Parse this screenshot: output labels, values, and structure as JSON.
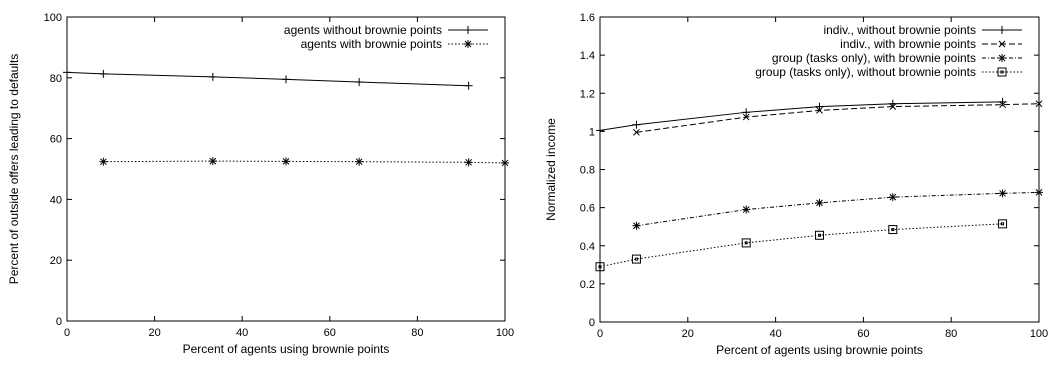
{
  "chart_data": [
    {
      "type": "line",
      "title": "",
      "xlabel": "Percent of agents using brownie points",
      "ylabel": "Percent of outside offers leading to defaults",
      "xlim": [
        0,
        100
      ],
      "ylim": [
        0,
        100
      ],
      "xticks": [
        0,
        20,
        40,
        60,
        80,
        100
      ],
      "yticks": [
        0,
        20,
        40,
        60,
        80,
        100
      ],
      "legend_position": "top-right",
      "series": [
        {
          "name": "agents without brownie points",
          "marker": "plus",
          "dash": "solid",
          "x": [
            0,
            8.3,
            33.3,
            50,
            66.7,
            91.7
          ],
          "y": [
            81.8,
            81.3,
            80.3,
            79.5,
            78.6,
            77.4
          ]
        },
        {
          "name": "agents with brownie points",
          "marker": "star",
          "dash": "dotted",
          "x": [
            8.3,
            33.3,
            50,
            66.7,
            91.7,
            100
          ],
          "y": [
            52.4,
            52.6,
            52.5,
            52.4,
            52.2,
            52.0
          ]
        }
      ]
    },
    {
      "type": "line",
      "title": "",
      "xlabel": "Percent of agents using brownie points",
      "ylabel": "Normalized income",
      "xlim": [
        0,
        100
      ],
      "ylim": [
        0,
        1.6
      ],
      "xticks": [
        0,
        20,
        40,
        60,
        80,
        100
      ],
      "yticks": [
        0,
        0.2,
        0.4,
        0.6,
        0.8,
        1,
        1.2,
        1.4,
        1.6
      ],
      "legend_position": "top-right",
      "series": [
        {
          "name": "indiv., without brownie points",
          "marker": "plus",
          "dash": "solid",
          "x": [
            0,
            8.3,
            33.3,
            50,
            66.7,
            91.7
          ],
          "y": [
            1.005,
            1.035,
            1.1,
            1.13,
            1.145,
            1.155
          ]
        },
        {
          "name": "indiv., with brownie points",
          "marker": "x",
          "dash": "dashed",
          "x": [
            8.3,
            33.3,
            50,
            66.7,
            91.7,
            100
          ],
          "y": [
            0.995,
            1.075,
            1.11,
            1.13,
            1.14,
            1.145
          ]
        },
        {
          "name": "group (tasks only), with brownie points",
          "marker": "star",
          "dash": "dashdot",
          "x": [
            8.3,
            33.3,
            50,
            66.7,
            91.7,
            100
          ],
          "y": [
            0.505,
            0.59,
            0.625,
            0.655,
            0.675,
            0.68
          ]
        },
        {
          "name": "group (tasks only), without brownie points",
          "marker": "box",
          "dash": "dotted",
          "x": [
            0,
            8.3,
            33.3,
            50,
            66.7,
            91.7
          ],
          "y": [
            0.29,
            0.33,
            0.415,
            0.455,
            0.485,
            0.515
          ]
        }
      ]
    }
  ]
}
